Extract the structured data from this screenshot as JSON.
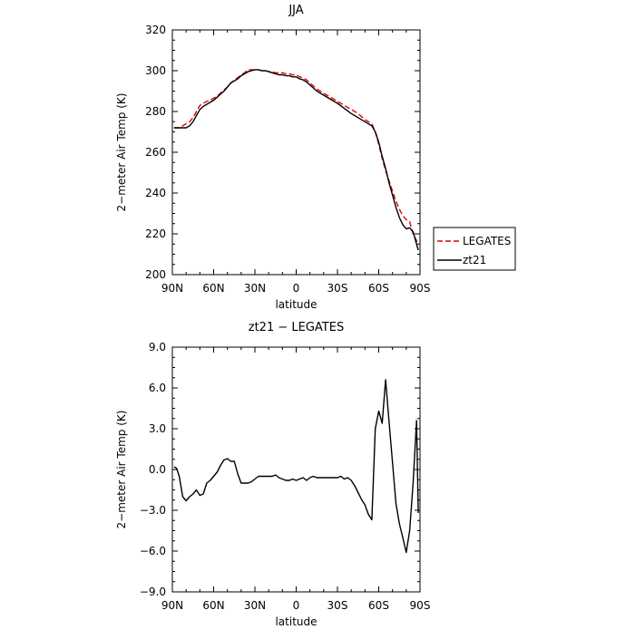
{
  "chart_data": [
    {
      "type": "line",
      "title": "JJA",
      "xlabel": "latitude",
      "ylabel": "2−meter Air Temp (K)",
      "xlim": [
        90,
        -90
      ],
      "ylim": [
        200,
        320
      ],
      "yticks": [
        200,
        220,
        240,
        260,
        280,
        300,
        320
      ],
      "xticks": [
        {
          "value": 90,
          "label": "90N"
        },
        {
          "value": 60,
          "label": "60N"
        },
        {
          "value": 30,
          "label": "30N"
        },
        {
          "value": 0,
          "label": "0"
        },
        {
          "value": -30,
          "label": "30S"
        },
        {
          "value": -60,
          "label": "60S"
        },
        {
          "value": -90,
          "label": "90S"
        }
      ],
      "legend": "right",
      "series": [
        {
          "name": "LEGATES",
          "color": "#e00000",
          "dash": true,
          "x": [
            88.75,
            85,
            82.5,
            80,
            77.5,
            75,
            72.5,
            70,
            67.5,
            65,
            62.5,
            60,
            57.5,
            55,
            52.5,
            50,
            47.5,
            45,
            42.5,
            40,
            37.5,
            35,
            32.5,
            30,
            27.5,
            25,
            22.5,
            20,
            17.5,
            15,
            12.5,
            10,
            7.5,
            5,
            2.5,
            0,
            -2.5,
            -5,
            -7.5,
            -10,
            -12.5,
            -15,
            -20,
            -25,
            -30,
            -35,
            -40,
            -45,
            -50,
            -55,
            -57.5,
            -60,
            -62.5,
            -65,
            -67.5,
            -70,
            -72.5,
            -75,
            -77.5,
            -80,
            -82.5,
            -85,
            -88.75
          ],
          "y": [
            272,
            272,
            273,
            274,
            275,
            277,
            280,
            283,
            284,
            285,
            285.5,
            286.5,
            287.5,
            289,
            290.5,
            292,
            294,
            295.5,
            296.5,
            298,
            299,
            300.5,
            300.5,
            300.5,
            300.5,
            300,
            300,
            299.5,
            299.5,
            299,
            299,
            299,
            298.5,
            298.5,
            298,
            298,
            297,
            296.5,
            295.5,
            294,
            292.5,
            291,
            289,
            287,
            285,
            283,
            281,
            279,
            276,
            274,
            270,
            264,
            257,
            251,
            246,
            241,
            236,
            232,
            229,
            227,
            226,
            220,
            215
          ]
        },
        {
          "name": "zt21",
          "color": "#000000",
          "dash": false,
          "x": [
            88.75,
            85,
            82.5,
            80,
            77.5,
            75,
            72.5,
            70,
            67.5,
            65,
            62.5,
            60,
            57.5,
            55,
            52.5,
            50,
            47.5,
            45,
            42.5,
            40,
            37.5,
            35,
            32.5,
            30,
            27.5,
            25,
            22.5,
            20,
            17.5,
            15,
            12.5,
            10,
            7.5,
            5,
            2.5,
            0,
            -2.5,
            -5,
            -7.5,
            -10,
            -12.5,
            -15,
            -20,
            -25,
            -30,
            -35,
            -40,
            -45,
            -50,
            -55,
            -57.5,
            -60,
            -62.5,
            -65,
            -67.5,
            -70,
            -72.5,
            -75,
            -77.5,
            -80,
            -82.5,
            -85,
            -88.75
          ],
          "y": [
            272,
            272,
            272,
            272,
            273,
            275,
            278,
            281,
            282.5,
            283.5,
            284.5,
            285.5,
            287,
            288.5,
            290,
            292,
            294,
            295,
            296,
            297.5,
            298.5,
            299.5,
            300,
            300.5,
            300.5,
            300,
            300,
            299.5,
            299,
            298.5,
            298,
            298,
            297.5,
            297.5,
            297,
            297,
            296,
            295.5,
            294.5,
            293,
            291.5,
            290,
            288,
            286,
            284,
            281.5,
            279,
            277,
            275,
            273,
            270,
            265,
            258,
            252,
            245,
            239,
            233,
            228,
            224.5,
            222.5,
            223,
            221,
            212
          ]
        }
      ]
    },
    {
      "type": "line",
      "title": "zt21 − LEGATES",
      "xlabel": "latitude",
      "ylabel": "2−meter Air Temp (K)",
      "xlim": [
        90,
        -90
      ],
      "ylim": [
        -9,
        9
      ],
      "yticks": [
        {
          "value": -9,
          "label": "−9.0"
        },
        {
          "value": -6,
          "label": "−6.0"
        },
        {
          "value": -3,
          "label": "−3.0"
        },
        {
          "value": 0,
          "label": "0.0"
        },
        {
          "value": 3,
          "label": "3.0"
        },
        {
          "value": 6,
          "label": "6.0"
        },
        {
          "value": 9,
          "label": "9.0"
        }
      ],
      "xticks": [
        {
          "value": 90,
          "label": "90N"
        },
        {
          "value": 60,
          "label": "60N"
        },
        {
          "value": 30,
          "label": "30N"
        },
        {
          "value": 0,
          "label": "0"
        },
        {
          "value": -30,
          "label": "30S"
        },
        {
          "value": -60,
          "label": "60S"
        },
        {
          "value": -90,
          "label": "90S"
        }
      ],
      "series": [
        {
          "name": "",
          "color": "#000000",
          "dash": false,
          "x": [
            88.75,
            87,
            85,
            82.5,
            80,
            77.5,
            75,
            72.5,
            70,
            67.5,
            65,
            62.5,
            60,
            57.5,
            55,
            52.5,
            50,
            47.5,
            45,
            42.5,
            40,
            37.5,
            35,
            32.5,
            30,
            27.5,
            25,
            22.5,
            20,
            17.5,
            15,
            12.5,
            10,
            7.5,
            5,
            2.5,
            0,
            -2.5,
            -5,
            -7.5,
            -10,
            -12.5,
            -15,
            -17.5,
            -20,
            -22.5,
            -25,
            -27.5,
            -30,
            -32.5,
            -35,
            -37.5,
            -40,
            -42.5,
            -45,
            -47.5,
            -50,
            -52.5,
            -55,
            -57.5,
            -60,
            -62.5,
            -65,
            -67.5,
            -70,
            -72.5,
            -75,
            -77.5,
            -80,
            -82.5,
            -85,
            -87.5,
            -88.75
          ],
          "y": [
            0.2,
            0.1,
            -0.5,
            -2.0,
            -2.3,
            -2.0,
            -1.8,
            -1.5,
            -1.9,
            -1.8,
            -1.0,
            -0.8,
            -0.5,
            -0.2,
            0.3,
            0.7,
            0.8,
            0.6,
            0.6,
            -0.3,
            -1.0,
            -1.0,
            -1.0,
            -0.9,
            -0.7,
            -0.5,
            -0.5,
            -0.5,
            -0.5,
            -0.5,
            -0.4,
            -0.6,
            -0.7,
            -0.8,
            -0.8,
            -0.7,
            -0.8,
            -0.7,
            -0.6,
            -0.8,
            -0.6,
            -0.5,
            -0.6,
            -0.6,
            -0.6,
            -0.6,
            -0.6,
            -0.6,
            -0.6,
            -0.5,
            -0.7,
            -0.6,
            -0.8,
            -1.2,
            -1.7,
            -2.2,
            -2.6,
            -3.3,
            -3.7,
            3.0,
            4.3,
            3.4,
            6.6,
            3.5,
            0.5,
            -2.5,
            -4.0,
            -5.0,
            -6.1,
            -4.5,
            -1.0,
            3.6,
            -3.2
          ]
        }
      ]
    }
  ]
}
